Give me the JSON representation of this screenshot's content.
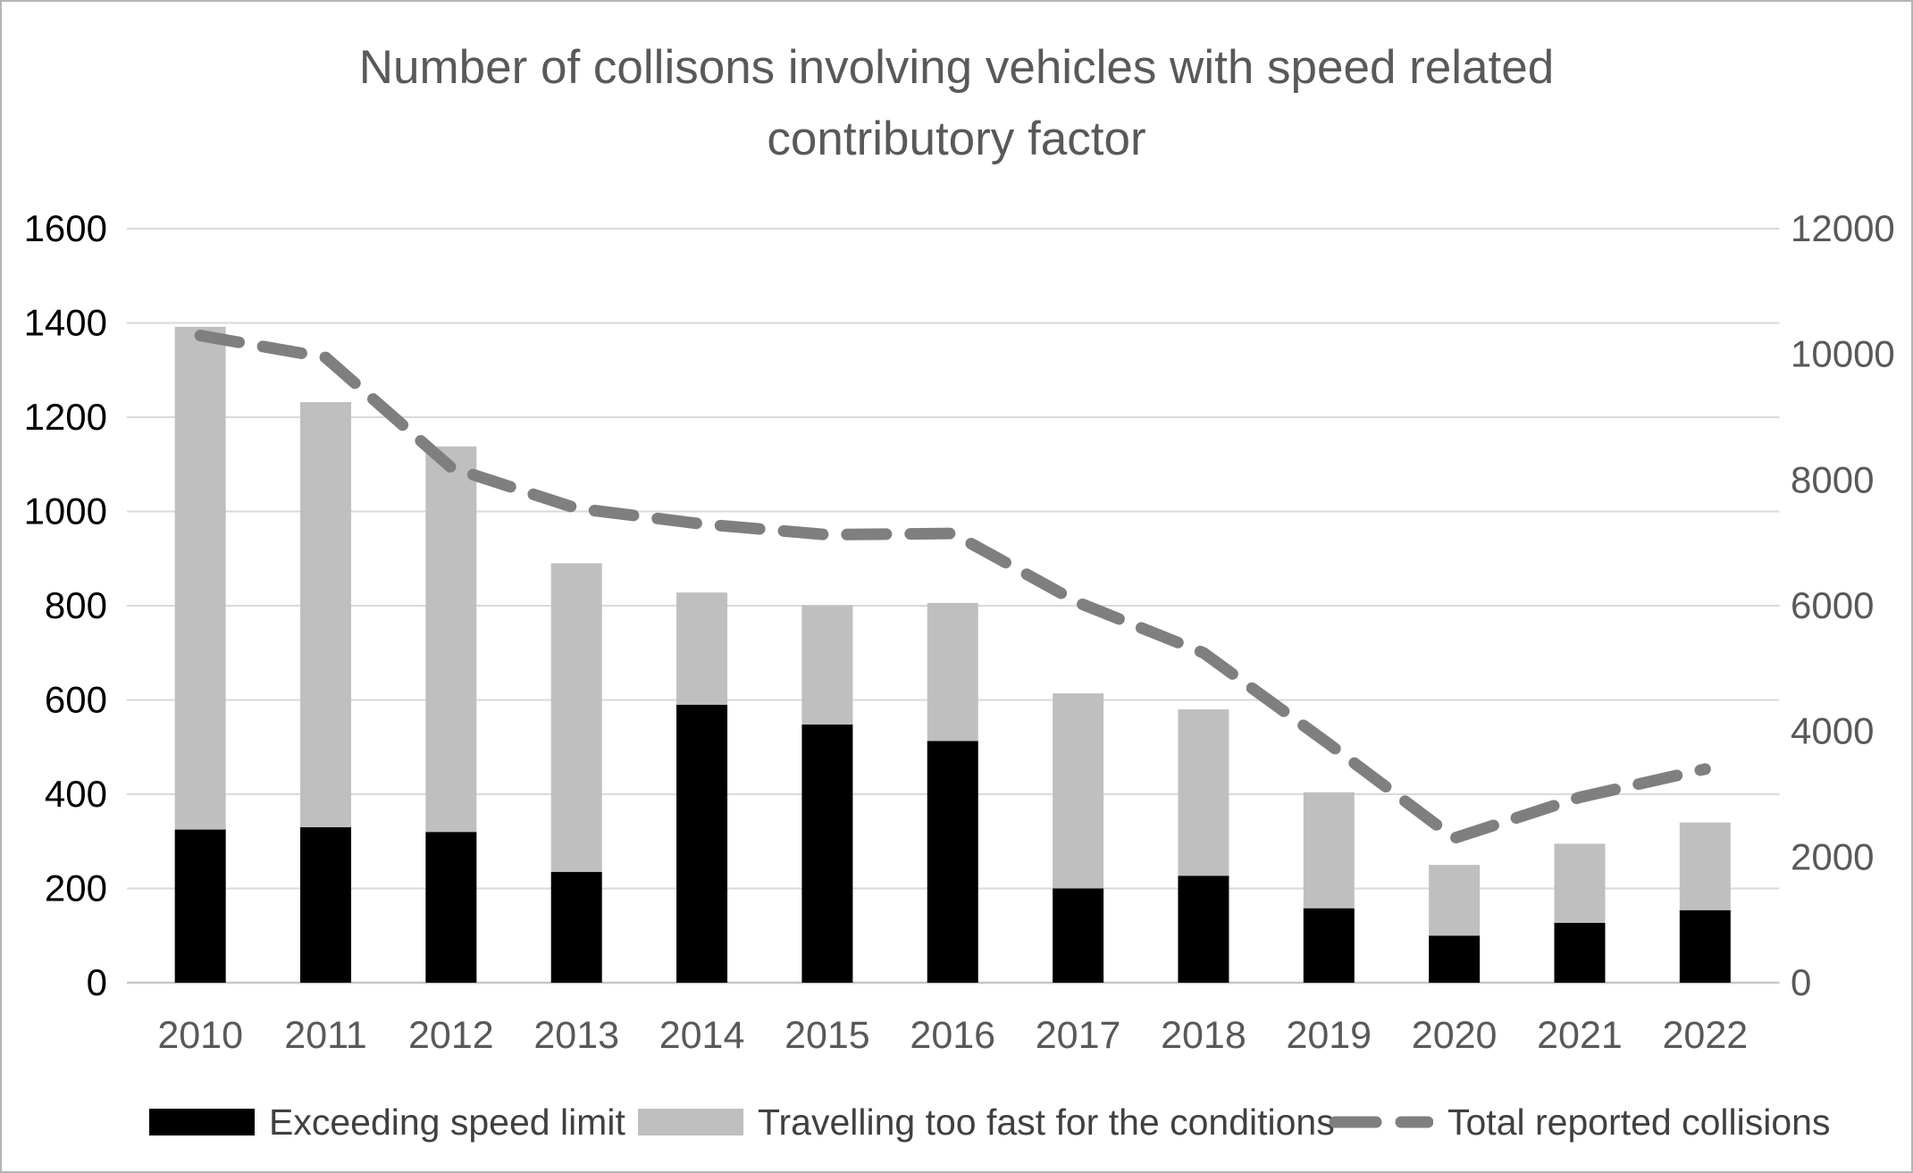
{
  "chart_data": {
    "type": "combo_stacked_bar_line",
    "title_line1": "Number of collisons involving vehicles with speed related",
    "title_line2": "contributory factor",
    "categories": [
      "2010",
      "2011",
      "2012",
      "2013",
      "2014",
      "2015",
      "2016",
      "2017",
      "2018",
      "2019",
      "2020",
      "2021",
      "2022"
    ],
    "series": [
      {
        "name": "Exceeding speed limit",
        "type": "bar",
        "axis": "left",
        "color": "#000000",
        "values": [
          325,
          330,
          320,
          235,
          590,
          548,
          513,
          200,
          227,
          158,
          100,
          127,
          154
        ]
      },
      {
        "name": "Travelling too fast for the conditions",
        "type": "bar",
        "axis": "left",
        "color": "#bfbfbf",
        "values": [
          1067,
          902,
          818,
          655,
          238,
          253,
          293,
          414,
          353,
          246,
          150,
          168,
          186
        ]
      },
      {
        "name": "Total reported collisions",
        "type": "line",
        "axis": "right",
        "color": "#7f7f7f",
        "values": [
          10300,
          9950,
          8200,
          7550,
          7300,
          7130,
          7150,
          6050,
          5250,
          3800,
          2300,
          2950,
          3400
        ]
      }
    ],
    "stacked_totals": [
      1392,
      1232,
      1138,
      890,
      828,
      801,
      806,
      614,
      580,
      404,
      250,
      295,
      340
    ],
    "left_axis": {
      "min": 0,
      "max": 1600,
      "step": 200,
      "labels": [
        "0",
        "200",
        "400",
        "600",
        "800",
        "1000",
        "1200",
        "1400",
        "1600"
      ]
    },
    "right_axis": {
      "min": 0,
      "max": 12000,
      "step": 2000,
      "labels": [
        "0",
        "2000",
        "4000",
        "6000",
        "8000",
        "10000",
        "12000"
      ]
    },
    "grid": true,
    "legend_position": "bottom",
    "colors": {
      "gridline": "#d9d9d9",
      "baseline": "#c6c6c6",
      "tick": "#c9c9c9",
      "axis_text_left": "#000000",
      "axis_text_right": "#595959",
      "axis_text_x": "#595959",
      "title_text": "#595959",
      "legend_text": "#404040",
      "background": "#ffffff"
    }
  }
}
